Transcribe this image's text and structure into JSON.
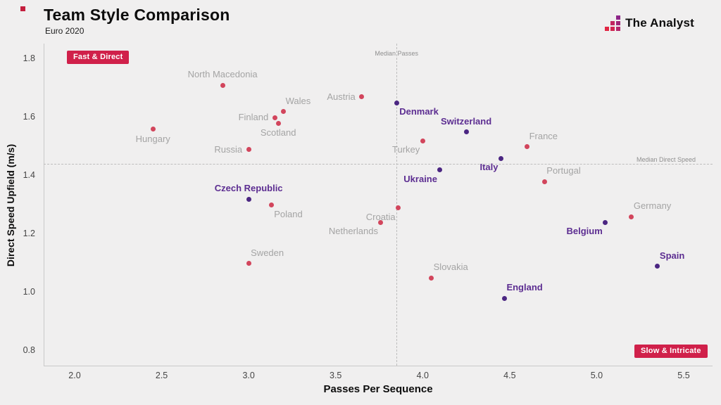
{
  "header": {
    "title": "Team Style Comparison",
    "subtitle": "Euro 2020",
    "brand": "The Analyst"
  },
  "chart_data": {
    "type": "scatter",
    "title": "Team Style Comparison",
    "subtitle": "Euro 2020",
    "xlabel": "Passes Per Sequence",
    "ylabel": "Direct Speed Upfield (m/s)",
    "xlim": [
      1.8,
      5.7
    ],
    "ylim": [
      0.75,
      1.85
    ],
    "x_ticks": [
      "2.0",
      "2.5",
      "3.0",
      "3.5",
      "4.0",
      "4.5",
      "5.0",
      "5.5"
    ],
    "y_ticks": [
      "0.8",
      "1.0",
      "1.2",
      "1.4",
      "1.6",
      "1.8"
    ],
    "grid": false,
    "median_x": {
      "value": 3.85,
      "label": "Median Passes"
    },
    "median_y": {
      "value": 1.44,
      "label": "Median Direct Speed"
    },
    "annotations": [
      {
        "label": "Fast & Direct",
        "corner": "top-left",
        "color": "#d0204a"
      },
      {
        "label": "Slow & Intricate",
        "corner": "bottom-right",
        "color": "#d0204a"
      }
    ],
    "groups": {
      "quarterfinalist": {
        "dot": "#4b2682",
        "label": "#5c2d91"
      },
      "other": {
        "dot": "#d2455c",
        "label": "#a4a4a4"
      }
    },
    "points": [
      {
        "team": "North Macedonia",
        "x": 2.85,
        "y": 1.71,
        "group": "other",
        "lp": "above"
      },
      {
        "team": "Hungary",
        "x": 2.45,
        "y": 1.56,
        "group": "other",
        "lp": "below"
      },
      {
        "team": "Russia",
        "x": 3.0,
        "y": 1.49,
        "group": "other",
        "lp": "left"
      },
      {
        "team": "Finland",
        "x": 3.15,
        "y": 1.6,
        "group": "other",
        "lp": "left"
      },
      {
        "team": "Wales",
        "x": 3.2,
        "y": 1.62,
        "group": "other",
        "lp": "above-right"
      },
      {
        "team": "Scotland",
        "x": 3.17,
        "y": 1.58,
        "group": "other",
        "lp": "below"
      },
      {
        "team": "Austria",
        "x": 3.65,
        "y": 1.67,
        "group": "other",
        "lp": "left"
      },
      {
        "team": "Denmark",
        "x": 3.85,
        "y": 1.65,
        "group": "quarterfinalist",
        "lp": "below-right"
      },
      {
        "team": "Turkey",
        "x": 4.0,
        "y": 1.52,
        "group": "other",
        "lp": "below-left"
      },
      {
        "team": "Switzerland",
        "x": 4.25,
        "y": 1.55,
        "group": "quarterfinalist",
        "lp": "above"
      },
      {
        "team": "France",
        "x": 4.6,
        "y": 1.5,
        "group": "other",
        "lp": "above-right"
      },
      {
        "team": "Italy",
        "x": 4.45,
        "y": 1.46,
        "group": "quarterfinalist",
        "lp": "below-left"
      },
      {
        "team": "Ukraine",
        "x": 4.1,
        "y": 1.42,
        "group": "quarterfinalist",
        "lp": "below-left"
      },
      {
        "team": "Portugal",
        "x": 4.7,
        "y": 1.38,
        "group": "other",
        "lp": "above-right"
      },
      {
        "team": "Czech Republic",
        "x": 3.0,
        "y": 1.32,
        "group": "quarterfinalist",
        "lp": "above"
      },
      {
        "team": "Poland",
        "x": 3.13,
        "y": 1.3,
        "group": "other",
        "lp": "below-right"
      },
      {
        "team": "Croatia",
        "x": 3.86,
        "y": 1.29,
        "group": "other",
        "lp": "below-left"
      },
      {
        "team": "Netherlands",
        "x": 3.76,
        "y": 1.24,
        "group": "other",
        "lp": "below-left"
      },
      {
        "team": "Germany",
        "x": 5.2,
        "y": 1.26,
        "group": "other",
        "lp": "above-right"
      },
      {
        "team": "Belgium",
        "x": 5.05,
        "y": 1.24,
        "group": "quarterfinalist",
        "lp": "below-left"
      },
      {
        "team": "Sweden",
        "x": 3.0,
        "y": 1.1,
        "group": "other",
        "lp": "above-right"
      },
      {
        "team": "Spain",
        "x": 5.35,
        "y": 1.09,
        "group": "quarterfinalist",
        "lp": "above-right"
      },
      {
        "team": "Slovakia",
        "x": 4.05,
        "y": 1.05,
        "group": "other",
        "lp": "above-right"
      },
      {
        "team": "England",
        "x": 4.47,
        "y": 0.98,
        "group": "quarterfinalist",
        "lp": "above-right"
      }
    ]
  }
}
